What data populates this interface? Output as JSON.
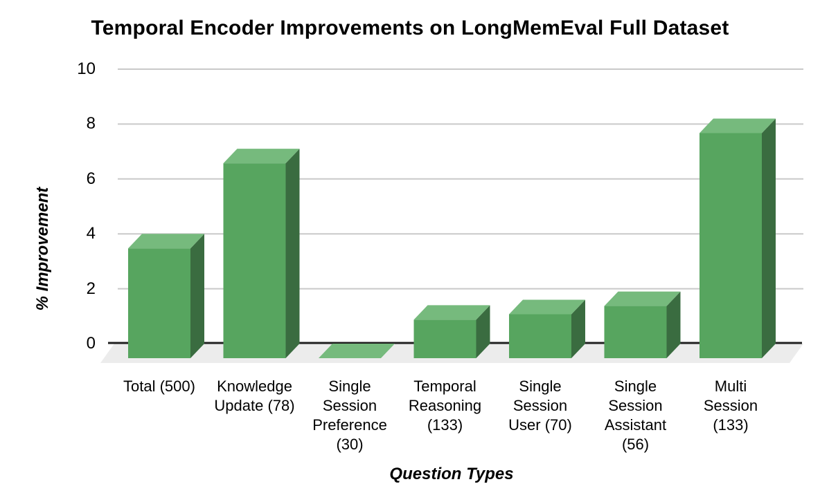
{
  "chart_data": {
    "type": "bar",
    "style": "3d-column",
    "title": "Temporal Encoder Improvements on LongMemEval Full Dataset",
    "xlabel": "Question Types",
    "ylabel": "% Improvement",
    "categories": [
      "Total (500)",
      "Knowledge Update (78)",
      "Single Session Preference (30)",
      "Temporal Reasoning (133)",
      "Single Session User (70)",
      "Single Session Assistant (56)",
      "Multi Session (133)"
    ],
    "category_label_lines": [
      [
        "Total (500)"
      ],
      [
        "Knowledge",
        "Update (78)"
      ],
      [
        "Single",
        "Session",
        "Preference",
        "(30)"
      ],
      [
        "Temporal",
        "Reasoning",
        "(133)"
      ],
      [
        "Single",
        "Session",
        "User (70)"
      ],
      [
        "Single",
        "Session",
        "Assistant",
        "(56)"
      ],
      [
        "Multi",
        "Session",
        "(133)"
      ]
    ],
    "values": [
      4.0,
      7.1,
      0,
      1.4,
      1.6,
      1.9,
      8.2
    ],
    "ylim": [
      0,
      10
    ],
    "yticks": [
      0,
      2,
      4,
      6,
      8,
      10
    ],
    "grid": true,
    "legend": "none",
    "colors": {
      "bar_front": "#57a55f",
      "bar_top": "#76ba7d",
      "bar_side": "#3a6c40",
      "floor": "#ececec",
      "gridline": "#c9c9c9",
      "axis_line": "#1f1f1f",
      "text": "#000000",
      "background": "#ffffff"
    }
  }
}
